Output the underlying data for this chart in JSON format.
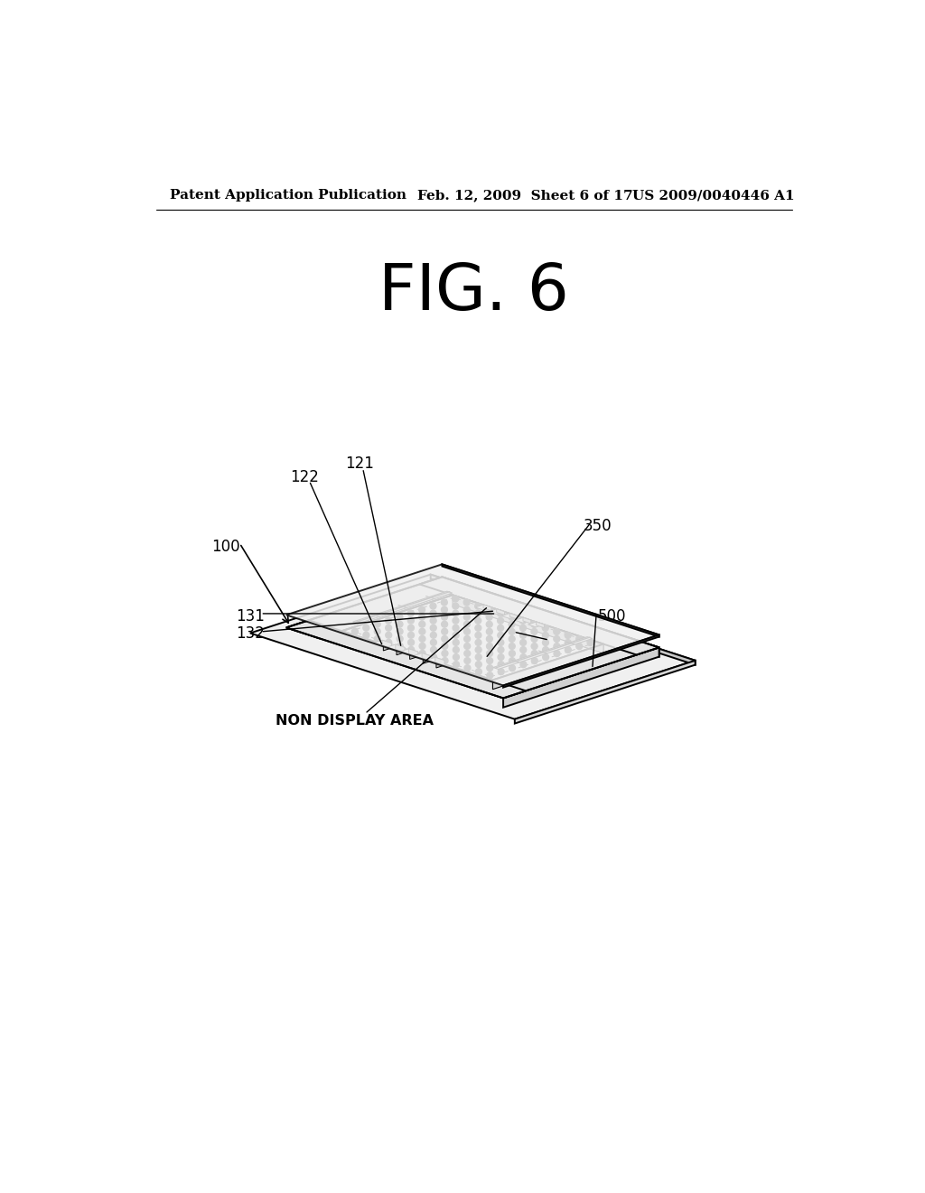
{
  "bg_color": "#ffffff",
  "header_left": "Patent Application Publication",
  "header_mid": "Feb. 12, 2009  Sheet 6 of 17",
  "header_right": "US 2009/0040446 A1",
  "fig_title": "FIG. 6",
  "line_color": "#000000",
  "dot_color": "#2a2a2a",
  "face_light": "#f5f5f5",
  "face_mid": "#e8e8e8",
  "face_dark": "#d0d0d0",
  "face_inner": "#f8f8f8"
}
